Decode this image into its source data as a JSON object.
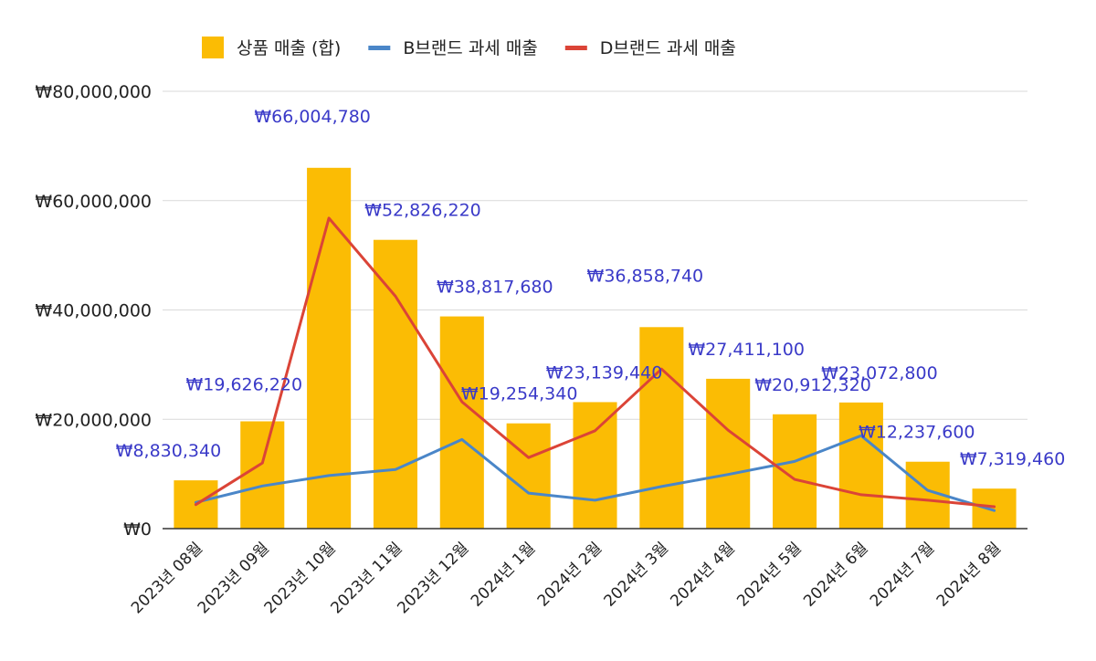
{
  "chart_data": {
    "type": "bar",
    "title": "",
    "xlabel": "",
    "ylabel": "",
    "categories": [
      "2023년 08월",
      "2023년 09월",
      "2023년 10월",
      "2023년 11월",
      "2023년 12월",
      "2024년 1월",
      "2024년 2월",
      "2024년 3월",
      "2024년 4월",
      "2024년 5월",
      "2024년 6월",
      "2024년 7월",
      "2024년 8월"
    ],
    "ylim": [
      0,
      80000000
    ],
    "yticks": [
      0,
      20000000,
      40000000,
      60000000,
      80000000
    ],
    "ytick_labels": [
      "₩0",
      "₩20,000,000",
      "₩40,000,000",
      "₩60,000,000",
      "₩80,000,000"
    ],
    "grid": true,
    "legend_position": "top",
    "series": [
      {
        "name": "상품 매출 (합)",
        "kind": "bar",
        "color": "#fbbc04",
        "values": [
          8830340,
          19626220,
          66004780,
          52826220,
          38817680,
          19254340,
          23139440,
          36858740,
          27411100,
          20912320,
          23072800,
          12237600,
          7319460
        ],
        "labels": [
          "₩8,830,340",
          "₩19,626,220",
          "₩66,004,780",
          "₩52,826,220",
          "₩38,817,680",
          "₩19,254,340",
          "₩23,139,440",
          "₩36,858,740",
          "₩27,411,100",
          "₩20,912,320",
          "₩23,072,800",
          "₩12,237,600",
          "₩7,319,460"
        ]
      },
      {
        "name": "B브랜드 과세 매출",
        "kind": "line",
        "color": "#4a86c8",
        "values": [
          4800000,
          7800000,
          9700000,
          10800000,
          16300000,
          6500000,
          5200000,
          7700000,
          9900000,
          12300000,
          17000000,
          7000000,
          3300000
        ]
      },
      {
        "name": "D브랜드 과세 매출",
        "kind": "line",
        "color": "#db4437",
        "values": [
          4400000,
          12000000,
          56800000,
          42500000,
          23200000,
          13000000,
          17900000,
          29200000,
          18000000,
          9000000,
          6200000,
          5200000,
          4000000
        ]
      }
    ]
  }
}
